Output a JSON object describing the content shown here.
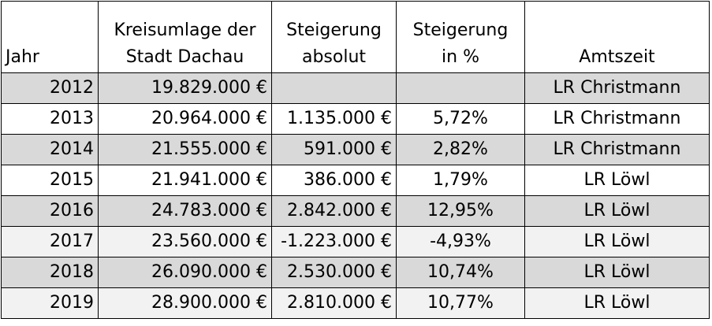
{
  "table": {
    "headers": {
      "jahr": "Jahr",
      "kreisumlage_line1": "Kreisumlage der",
      "kreisumlage_line2": "Stadt Dachau",
      "steigerung_abs_line1": "Steigerung",
      "steigerung_abs_line2": "absolut",
      "steigerung_pct_line1": "Steigerung",
      "steigerung_pct_line2": "in %",
      "amtszeit": "Amtszeit"
    },
    "rows": [
      {
        "jahr": "2012",
        "kreisumlage": "19.829.000 €",
        "steigerung_abs": "",
        "steigerung_pct": "",
        "amtszeit": "LR Christmann"
      },
      {
        "jahr": "2013",
        "kreisumlage": "20.964.000 €",
        "steigerung_abs": "1.135.000 €",
        "steigerung_pct": "5,72%",
        "amtszeit": "LR Christmann"
      },
      {
        "jahr": "2014",
        "kreisumlage": "21.555.000 €",
        "steigerung_abs": "591.000 €",
        "steigerung_pct": "2,82%",
        "amtszeit": "LR Christmann"
      },
      {
        "jahr": "2015",
        "kreisumlage": "21.941.000 €",
        "steigerung_abs": "386.000 €",
        "steigerung_pct": "1,79%",
        "amtszeit": "LR Löwl"
      },
      {
        "jahr": "2016",
        "kreisumlage": "24.783.000 €",
        "steigerung_abs": "2.842.000 €",
        "steigerung_pct": "12,95%",
        "amtszeit": "LR Löwl"
      },
      {
        "jahr": "2017",
        "kreisumlage": "23.560.000 €",
        "steigerung_abs": "-1.223.000 €",
        "steigerung_pct": "-4,93%",
        "amtszeit": "LR Löwl"
      },
      {
        "jahr": "2018",
        "kreisumlage": "26.090.000 €",
        "steigerung_abs": "2.530.000 €",
        "steigerung_pct": "10,74%",
        "amtszeit": "LR Löwl"
      },
      {
        "jahr": "2019",
        "kreisumlage": "28.900.000 €",
        "steigerung_abs": "2.810.000 €",
        "steigerung_pct": "10,77%",
        "amtszeit": "LR Löwl"
      }
    ],
    "row_shading": [
      "shade",
      "plain",
      "shade",
      "plain",
      "shade",
      "light",
      "shade",
      "light"
    ],
    "colors": {
      "shade": "#d9d9d9",
      "light": "#f2f2f2",
      "plain": "#ffffff",
      "border": "#000000"
    }
  }
}
